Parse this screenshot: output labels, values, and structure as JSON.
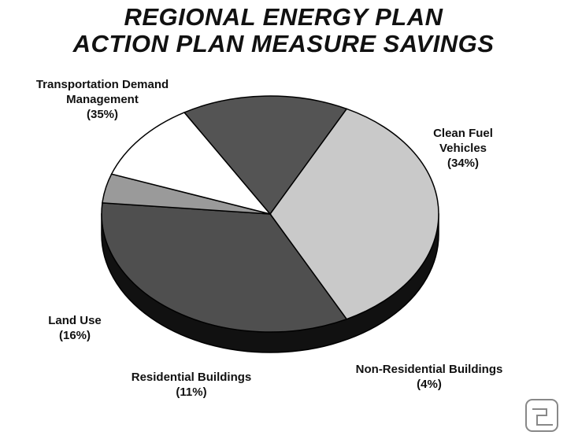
{
  "chart_data": {
    "type": "pie",
    "title": "REGIONAL ENERGY PLAN",
    "subtitle": "ACTION PLAN MEASURE SAVINGS",
    "categories": [
      "Transportation Demand Management",
      "Clean Fuel Vehicles",
      "Non-Residential Buildings",
      "Residential Buildings",
      "Land Use"
    ],
    "values": [
      35,
      34,
      4,
      11,
      16
    ],
    "value_labels": [
      "(35%)",
      "(34%)",
      "(4%)",
      "(11%)",
      "(16%)"
    ],
    "colors": [
      "#c9c9c9",
      "#4f4f4f",
      "#9a9a9a",
      "#ffffff",
      "#545454"
    ]
  }
}
